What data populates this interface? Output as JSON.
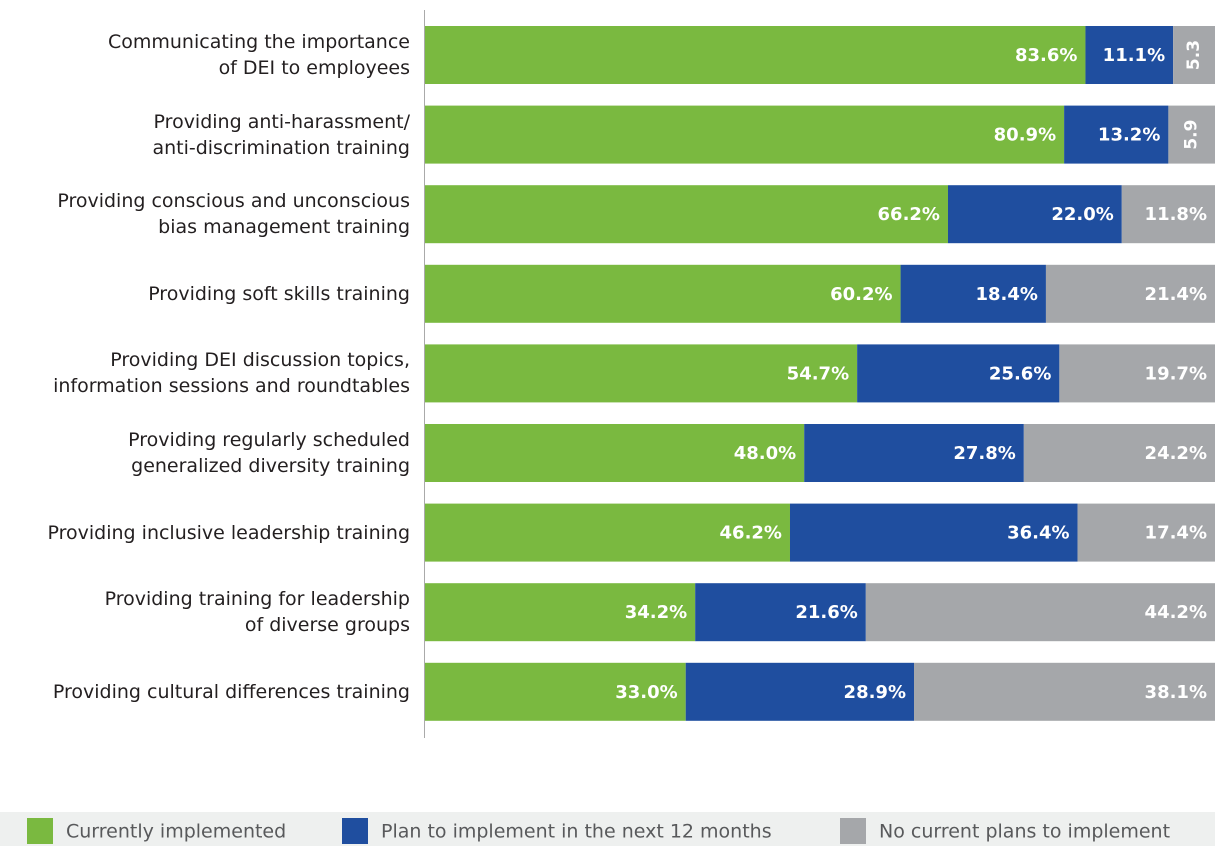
{
  "chart_data": {
    "type": "stacked-bar-horizontal",
    "categories": [
      "Communicating the importance\nof DEI to employees",
      "Providing anti-harassment/\nanti-discrimination training",
      "Providing conscious and unconscious\nbias management training",
      "Providing soft skills training",
      "Providing DEI discussion topics,\ninformation sessions and roundtables",
      "Providing regularly scheduled\ngeneralized diversity training",
      "Providing inclusive leadership training",
      "Providing training for leadership\nof diverse groups",
      "Providing cultural differences training"
    ],
    "xlim": [
      0,
      100
    ],
    "legend": "bottom",
    "series": [
      {
        "name": "Currently implemented",
        "color": "#7ab940",
        "values": [
          83.6,
          80.9,
          66.2,
          60.2,
          54.7,
          48.0,
          46.2,
          34.2,
          33.0
        ],
        "value_labels": [
          "83.6%",
          "80.9%",
          "66.2%",
          "60.2%",
          "54.7%",
          "48.0%",
          "46.2%",
          "34.2%",
          "33.0%"
        ]
      },
      {
        "name": "Plan to implement in the next 12 months",
        "color": "#1f4e9f",
        "values": [
          11.1,
          13.2,
          22.0,
          18.4,
          25.6,
          27.8,
          36.4,
          21.6,
          28.9
        ],
        "value_labels": [
          "11.1%",
          "13.2%",
          "22.0%",
          "18.4%",
          "25.6%",
          "27.8%",
          "36.4%",
          "21.6%",
          "28.9%"
        ]
      },
      {
        "name": "No current plans to implement",
        "color": "#a5a7aa",
        "values": [
          5.3,
          5.9,
          11.8,
          21.4,
          19.7,
          24.2,
          17.4,
          44.2,
          38.1
        ],
        "value_labels": [
          "5.3",
          "5.9",
          "11.8%",
          "21.4%",
          "19.7%",
          "24.2%",
          "17.4%",
          "44.2%",
          "38.1%"
        ]
      }
    ]
  }
}
